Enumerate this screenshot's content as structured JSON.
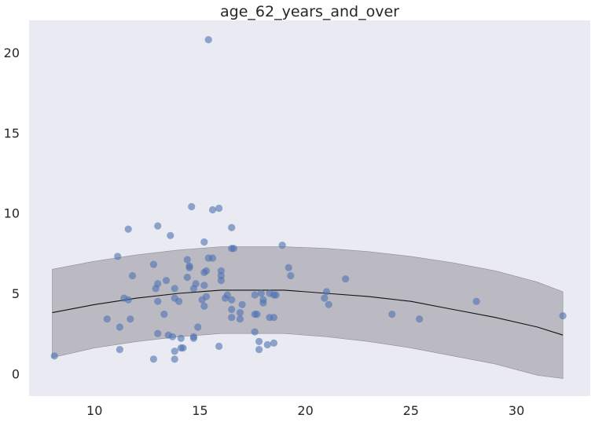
{
  "chart_data": {
    "type": "scatter",
    "title": "age_62_years_and_over",
    "xlabel": "",
    "ylabel": "",
    "xlim": [
      6.9,
      33.5
    ],
    "ylim": [
      -1.4,
      22.0
    ],
    "xticks": [
      10,
      15,
      20,
      25,
      30
    ],
    "yticks": [
      0,
      5,
      10,
      15,
      20
    ],
    "grid": false,
    "background": "#EAEAF2",
    "point_color": "#4C72B0",
    "band_color": "#A9A7AE",
    "line_color": "#111111",
    "points": [
      [
        8.1,
        1.1
      ],
      [
        10.6,
        3.4
      ],
      [
        11.1,
        7.3
      ],
      [
        11.2,
        2.9
      ],
      [
        11.2,
        1.5
      ],
      [
        11.4,
        4.7
      ],
      [
        11.6,
        9.0
      ],
      [
        11.6,
        4.6
      ],
      [
        11.7,
        3.4
      ],
      [
        11.8,
        6.1
      ],
      [
        12.8,
        0.9
      ],
      [
        12.8,
        6.8
      ],
      [
        13.0,
        9.2
      ],
      [
        12.9,
        5.3
      ],
      [
        13.0,
        2.5
      ],
      [
        13.0,
        5.6
      ],
      [
        13.0,
        4.5
      ],
      [
        13.3,
        3.7
      ],
      [
        13.4,
        5.8
      ],
      [
        13.5,
        2.4
      ],
      [
        13.6,
        8.6
      ],
      [
        13.7,
        2.3
      ],
      [
        13.8,
        5.3
      ],
      [
        13.8,
        4.7
      ],
      [
        13.8,
        1.4
      ],
      [
        13.8,
        0.9
      ],
      [
        14.0,
        4.5
      ],
      [
        14.1,
        2.2
      ],
      [
        14.1,
        1.6
      ],
      [
        14.2,
        1.6
      ],
      [
        14.4,
        7.1
      ],
      [
        14.4,
        6.0
      ],
      [
        14.5,
        6.7
      ],
      [
        14.5,
        6.6
      ],
      [
        14.6,
        10.4
      ],
      [
        14.7,
        5.3
      ],
      [
        14.7,
        2.2
      ],
      [
        14.7,
        2.3
      ],
      [
        14.8,
        5.6
      ],
      [
        14.9,
        2.9
      ],
      [
        15.1,
        4.6
      ],
      [
        15.2,
        8.2
      ],
      [
        15.2,
        6.3
      ],
      [
        15.2,
        5.5
      ],
      [
        15.2,
        4.2
      ],
      [
        15.3,
        6.4
      ],
      [
        15.3,
        4.8
      ],
      [
        15.4,
        7.2
      ],
      [
        15.4,
        20.8
      ],
      [
        15.6,
        7.2
      ],
      [
        15.6,
        10.2
      ],
      [
        15.9,
        10.3
      ],
      [
        15.9,
        1.7
      ],
      [
        16.0,
        6.4
      ],
      [
        16.0,
        6.1
      ],
      [
        16.0,
        5.8
      ],
      [
        16.2,
        4.7
      ],
      [
        16.3,
        4.9
      ],
      [
        16.5,
        7.8
      ],
      [
        16.5,
        9.1
      ],
      [
        16.5,
        4.6
      ],
      [
        16.5,
        4.0
      ],
      [
        16.5,
        3.5
      ],
      [
        16.6,
        7.8
      ],
      [
        16.9,
        3.8
      ],
      [
        16.9,
        3.4
      ],
      [
        17.0,
        4.3
      ],
      [
        17.6,
        4.9
      ],
      [
        17.6,
        3.7
      ],
      [
        17.6,
        2.6
      ],
      [
        17.7,
        3.7
      ],
      [
        17.8,
        2.0
      ],
      [
        17.8,
        1.5
      ],
      [
        17.9,
        5.0
      ],
      [
        18.0,
        4.6
      ],
      [
        18.0,
        4.4
      ],
      [
        18.2,
        1.8
      ],
      [
        18.3,
        5.0
      ],
      [
        18.3,
        3.5
      ],
      [
        18.5,
        4.9
      ],
      [
        18.5,
        3.5
      ],
      [
        18.5,
        1.9
      ],
      [
        18.6,
        4.9
      ],
      [
        18.9,
        8.0
      ],
      [
        19.2,
        6.6
      ],
      [
        19.3,
        6.1
      ],
      [
        20.9,
        4.7
      ],
      [
        21.0,
        5.1
      ],
      [
        21.1,
        4.3
      ],
      [
        21.9,
        5.9
      ],
      [
        24.1,
        3.7
      ],
      [
        25.4,
        3.4
      ],
      [
        28.1,
        4.5
      ],
      [
        32.2,
        3.6
      ]
    ],
    "fit_line": {
      "x": [
        8.0,
        10.0,
        12.0,
        14.0,
        16.0,
        17.5,
        19.0,
        21.0,
        23.0,
        25.0,
        27.0,
        29.0,
        31.0,
        32.2
      ],
      "y": [
        3.8,
        4.3,
        4.7,
        5.0,
        5.2,
        5.2,
        5.2,
        5.0,
        4.8,
        4.5,
        4.0,
        3.5,
        2.9,
        2.4
      ]
    },
    "band_upper": {
      "x": [
        8.0,
        10.0,
        12.0,
        14.0,
        16.0,
        17.5,
        19.0,
        21.0,
        23.0,
        25.0,
        27.0,
        29.0,
        31.0,
        32.2
      ],
      "y": [
        6.5,
        7.0,
        7.4,
        7.7,
        7.9,
        7.9,
        7.9,
        7.8,
        7.6,
        7.3,
        6.9,
        6.4,
        5.7,
        5.1
      ]
    },
    "band_lower": {
      "x": [
        8.0,
        10.0,
        12.0,
        14.0,
        16.0,
        17.5,
        19.0,
        21.0,
        23.0,
        25.0,
        27.0,
        29.0,
        31.0,
        32.2
      ],
      "y": [
        1.0,
        1.6,
        2.0,
        2.3,
        2.5,
        2.5,
        2.5,
        2.3,
        2.0,
        1.6,
        1.1,
        0.6,
        -0.1,
        -0.3
      ]
    }
  }
}
